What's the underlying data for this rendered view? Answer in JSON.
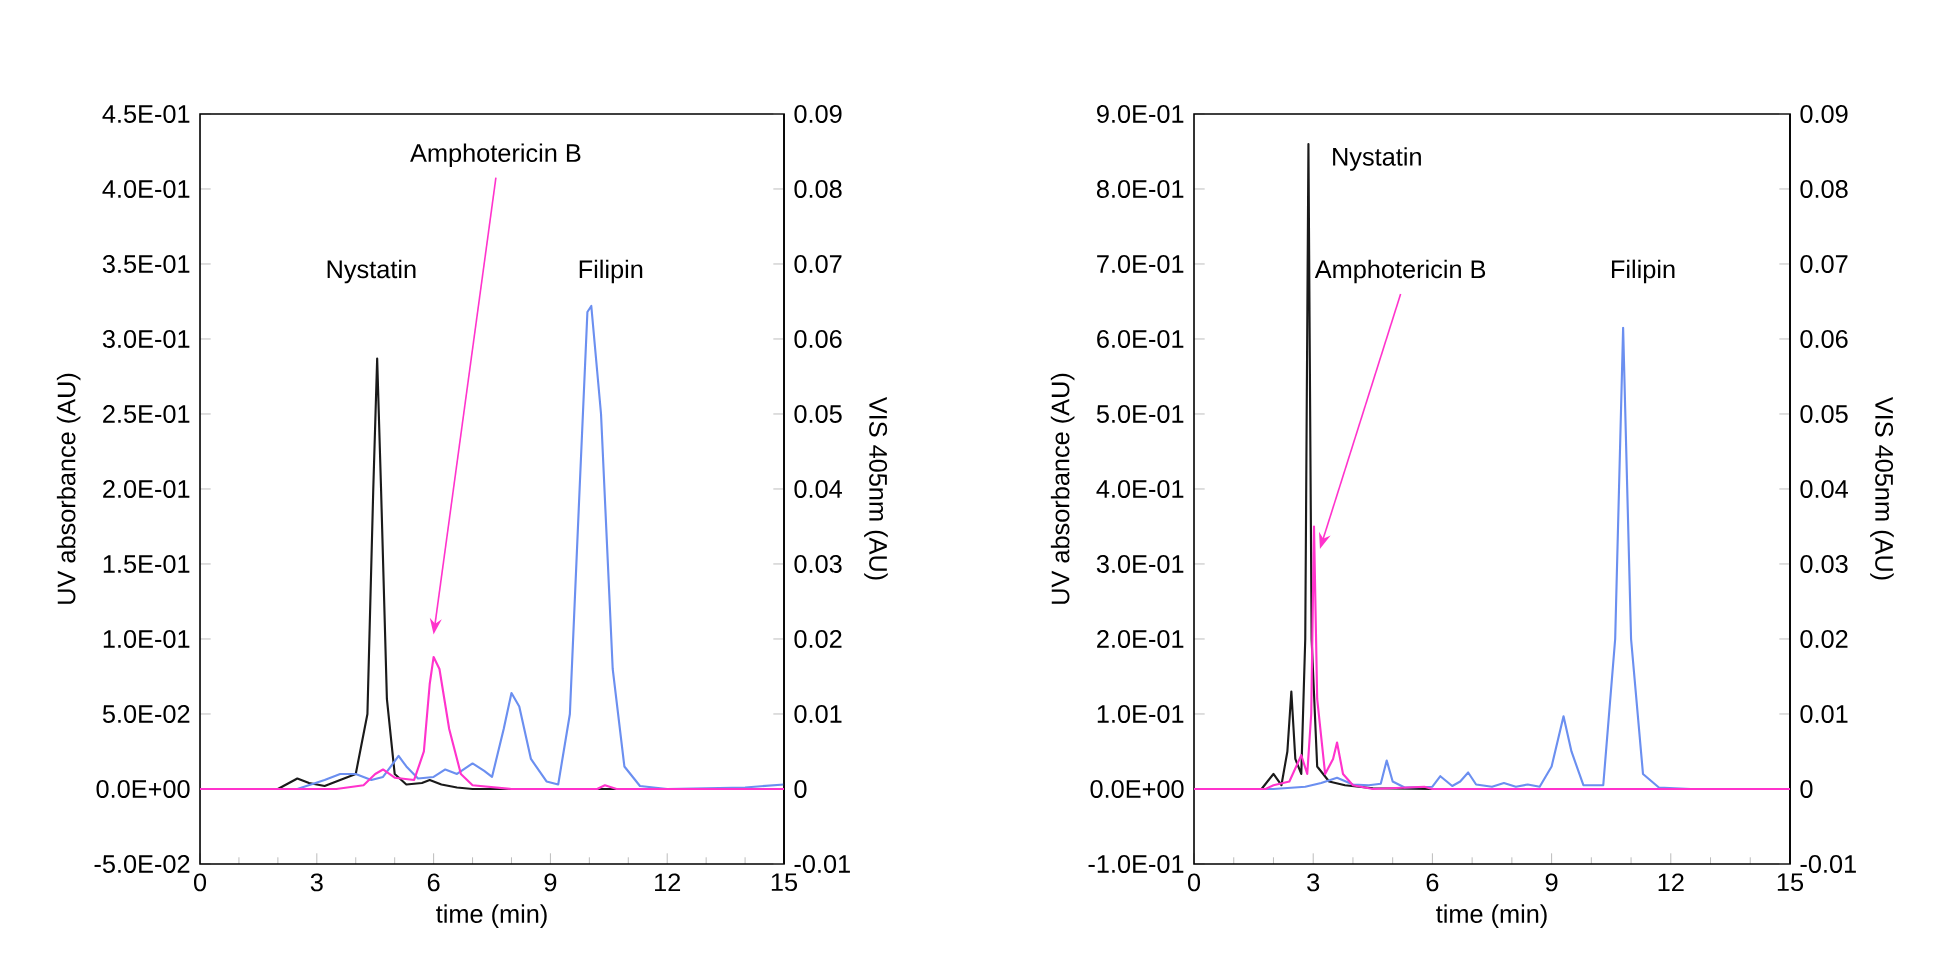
{
  "chart_data": [
    {
      "type": "line",
      "xlabel": "time (min)",
      "ylabel": "UV absorbance (AU)",
      "y2label": "VIS 405nm (AU)",
      "xlim": [
        0,
        15
      ],
      "xticks": [
        0,
        3,
        6,
        9,
        12,
        15
      ],
      "ylim": [
        -0.05,
        0.45
      ],
      "yticks": [
        {
          "value": -0.05,
          "label": "-5.0E-02"
        },
        {
          "value": 0,
          "label": "0.0E+00"
        },
        {
          "value": 0.05,
          "label": "5.0E-02"
        },
        {
          "value": 0.1,
          "label": "1.0E-01"
        },
        {
          "value": 0.15,
          "label": "1.5E-01"
        },
        {
          "value": 0.2,
          "label": "2.0E-01"
        },
        {
          "value": 0.25,
          "label": "2.5E-01"
        },
        {
          "value": 0.3,
          "label": "3.0E-01"
        },
        {
          "value": 0.35,
          "label": "3.5E-01"
        },
        {
          "value": 0.4,
          "label": "4.0E-01"
        },
        {
          "value": 0.45,
          "label": "4.5E-01"
        }
      ],
      "y2lim": [
        -0.01,
        0.09
      ],
      "y2ticks": [
        -0.01,
        0,
        0.01,
        0.02,
        0.03,
        0.04,
        0.05,
        0.06,
        0.07,
        0.08,
        0.09
      ],
      "grid": false,
      "marker": "none",
      "line_style": "solid",
      "annotations": [
        "Nystatin",
        "Filipin",
        "Amphotericin B"
      ],
      "series": [
        {
          "color": "#1a1a1a",
          "x": [
            0,
            2.0,
            2.5,
            2.8,
            3.2,
            3.6,
            4.0,
            4.3,
            4.45,
            4.55,
            4.65,
            4.8,
            5.0,
            5.3,
            5.7,
            5.9,
            6.2,
            6.6,
            7,
            15
          ],
          "values": [
            0,
            0,
            0.007,
            0.004,
            0.002,
            0.006,
            0.01,
            0.05,
            0.2,
            0.287,
            0.2,
            0.06,
            0.01,
            0.003,
            0.004,
            0.006,
            0.003,
            0.001,
            0,
            0
          ]
        },
        {
          "color": "#6b8ff0",
          "x": [
            0,
            2.5,
            3.2,
            3.6,
            4.0,
            4.4,
            4.7,
            5.1,
            5.3,
            5.6,
            6.0,
            6.3,
            6.6,
            7.0,
            7.3,
            7.5,
            7.8,
            8.0,
            8.2,
            8.5,
            8.9,
            9.2,
            9.5,
            9.75,
            9.95,
            10.05,
            10.3,
            10.6,
            10.9,
            11.3,
            12,
            14,
            15
          ],
          "values": [
            0,
            0,
            0.006,
            0.01,
            0.01,
            0.006,
            0.008,
            0.022,
            0.015,
            0.007,
            0.008,
            0.013,
            0.01,
            0.017,
            0.012,
            0.008,
            0.04,
            0.064,
            0.055,
            0.02,
            0.005,
            0.003,
            0.05,
            0.2,
            0.318,
            0.322,
            0.25,
            0.08,
            0.015,
            0.002,
            0,
            0.001,
            0.003
          ]
        },
        {
          "color": "#ff33cc",
          "axis": "y2",
          "x": [
            0,
            3.5,
            4.2,
            4.5,
            4.7,
            5.0,
            5.5,
            5.75,
            5.9,
            6.0,
            6.15,
            6.4,
            6.7,
            7.0,
            8,
            10.2,
            10.4,
            10.7,
            15
          ],
          "values": [
            0,
            0,
            0.0005,
            0.002,
            0.0026,
            0.0015,
            0.0012,
            0.005,
            0.014,
            0.0176,
            0.016,
            0.008,
            0.002,
            0.0005,
            0,
            0,
            0.0005,
            0,
            0
          ]
        }
      ]
    },
    {
      "type": "line",
      "xlabel": "time (min)",
      "ylabel": "UV absorbance (AU)",
      "y2label": "VIS 405nm (AU)",
      "xlim": [
        0,
        15
      ],
      "xticks": [
        0,
        3,
        6,
        9,
        12,
        15
      ],
      "ylim": [
        -0.1,
        0.9
      ],
      "yticks": [
        {
          "value": -0.1,
          "label": "-1.0E-01"
        },
        {
          "value": 0,
          "label": "0.0E+00"
        },
        {
          "value": 0.1,
          "label": "1.0E-01"
        },
        {
          "value": 0.2,
          "label": "2.0E-01"
        },
        {
          "value": 0.3,
          "label": "3.0E-01"
        },
        {
          "value": 0.4,
          "label": "4.0E-01"
        },
        {
          "value": 0.5,
          "label": "5.0E-01"
        },
        {
          "value": 0.6,
          "label": "6.0E-01"
        },
        {
          "value": 0.7,
          "label": "7.0E-01"
        },
        {
          "value": 0.8,
          "label": "8.0E-01"
        },
        {
          "value": 0.9,
          "label": "9.0E-01"
        }
      ],
      "y2lim": [
        -0.01,
        0.09
      ],
      "y2ticks": [
        -0.01,
        0,
        0.01,
        0.02,
        0.03,
        0.04,
        0.05,
        0.06,
        0.07,
        0.08,
        0.09
      ],
      "grid": false,
      "marker": "none",
      "line_style": "solid",
      "annotations": [
        "Nystatin",
        "Filipin",
        "Amphotericin B"
      ],
      "series": [
        {
          "color": "#1a1a1a",
          "x": [
            0,
            1.7,
            2.0,
            2.2,
            2.35,
            2.45,
            2.55,
            2.7,
            2.8,
            2.88,
            2.96,
            3.1,
            3.4,
            3.8,
            4.5,
            6,
            15
          ],
          "values": [
            0,
            0,
            0.02,
            0.005,
            0.05,
            0.13,
            0.04,
            0.02,
            0.2,
            0.86,
            0.2,
            0.03,
            0.01,
            0.005,
            0.001,
            0,
            0
          ]
        },
        {
          "color": "#6b8ff0",
          "x": [
            0,
            2,
            2.8,
            3.2,
            3.6,
            4.0,
            4.4,
            4.7,
            4.85,
            5.0,
            5.3,
            6.0,
            6.2,
            6.5,
            6.7,
            6.9,
            7.1,
            7.5,
            7.8,
            8.1,
            8.4,
            8.7,
            9.0,
            9.3,
            9.5,
            9.8,
            10.3,
            10.6,
            10.8,
            11.0,
            11.3,
            11.7,
            12.5,
            15
          ],
          "values": [
            0,
            0,
            0.003,
            0.008,
            0.015,
            0.006,
            0.005,
            0.007,
            0.038,
            0.01,
            0.002,
            0.003,
            0.017,
            0.004,
            0.01,
            0.022,
            0.006,
            0.003,
            0.008,
            0.003,
            0.006,
            0.003,
            0.03,
            0.097,
            0.05,
            0.005,
            0.005,
            0.2,
            0.615,
            0.2,
            0.02,
            0.002,
            0,
            0
          ]
        },
        {
          "color": "#ff33cc",
          "axis": "y2",
          "x": [
            0,
            1.8,
            2.0,
            2.4,
            2.7,
            2.85,
            2.95,
            3.02,
            3.1,
            3.3,
            3.5,
            3.6,
            3.75,
            4.0,
            4.5,
            5.8,
            6.0,
            15
          ],
          "values": [
            0,
            0,
            0.0005,
            0.001,
            0.0045,
            0.002,
            0.01,
            0.035,
            0.012,
            0.002,
            0.004,
            0.0062,
            0.002,
            0.0005,
            0,
            0.0003,
            0,
            0
          ]
        }
      ]
    }
  ]
}
